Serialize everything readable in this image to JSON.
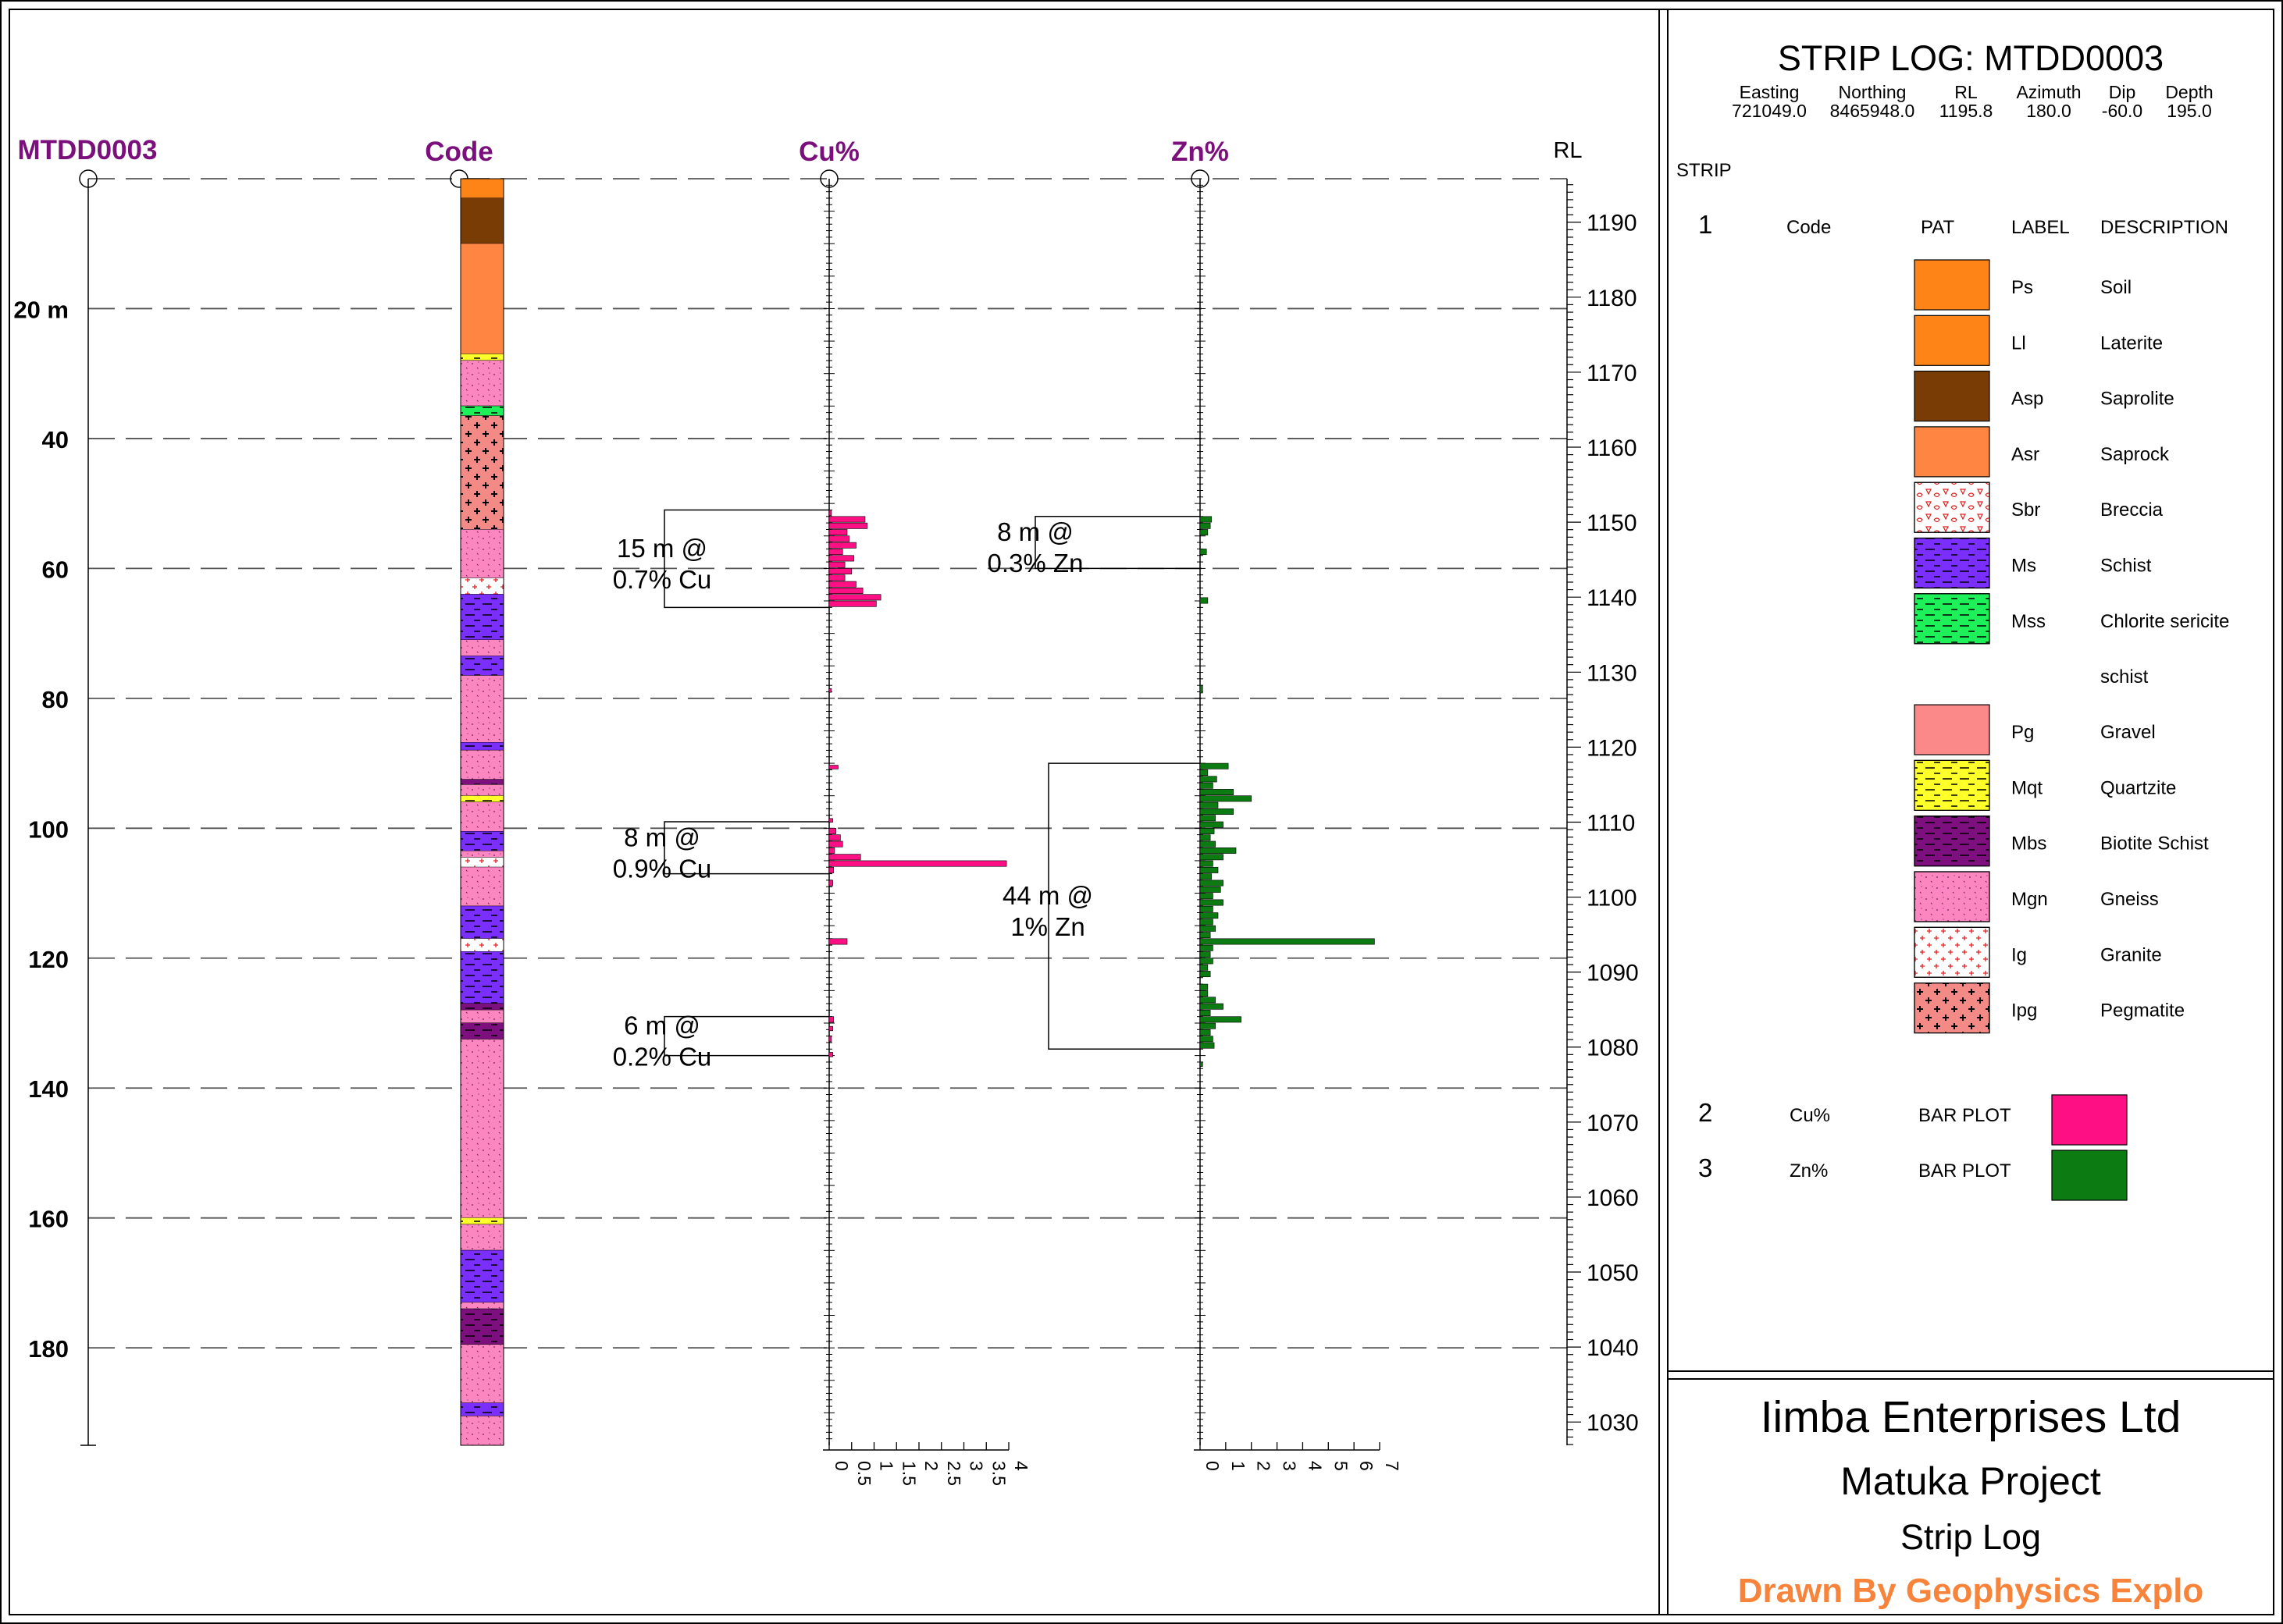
{
  "header": {
    "hole_id": "MTDD0003",
    "code_title": "Code",
    "cu_title": "Cu%",
    "zn_title": "Zn%",
    "rl_title": "RL",
    "title_color": "#7b0f7b"
  },
  "strip_title": "STRIP LOG: MTDD0003",
  "collar": [
    {
      "label": "Easting",
      "value": "721049.0"
    },
    {
      "label": "Northing",
      "value": "8465948.0"
    },
    {
      "label": "RL",
      "value": "1195.8"
    },
    {
      "label": "Azimuth",
      "value": "180.0"
    },
    {
      "label": "Dip",
      "value": "-60.0"
    },
    {
      "label": "Depth",
      "value": "195.0"
    }
  ],
  "legend": {
    "strip_label": "STRIP",
    "strip_no": "1",
    "code_col": "Code",
    "pat_col": "PAT",
    "label_col": "LABEL",
    "desc_col": "DESCRIPTION",
    "items": [
      {
        "label": "Ps",
        "description": "Soil",
        "color": "#ff8418",
        "pattern": "solid"
      },
      {
        "label": "Ll",
        "description": "Laterite",
        "color": "#ff8418",
        "pattern": "solid"
      },
      {
        "label": "Asp",
        "description": "Saprolite",
        "color": "#7a3c05",
        "pattern": "solid"
      },
      {
        "label": "Asr",
        "description": "Saprock",
        "color": "#fe8642",
        "pattern": "solid"
      },
      {
        "label": "Sbr",
        "description": "Breccia",
        "color": "#ffffff",
        "pattern": "breccia"
      },
      {
        "label": "Ms",
        "description": "Schist",
        "color": "#7b2fff",
        "pattern": "dash"
      },
      {
        "label": "Mss",
        "description": "Chlorite sericite",
        "description2": "schist",
        "color": "#1ef05a",
        "pattern": "dash"
      },
      {
        "label": "Pg",
        "description": "Gravel",
        "color": "#fb8989",
        "pattern": "solid"
      },
      {
        "label": "Mqt",
        "description": "Quartzite",
        "color": "#ffff2a",
        "pattern": "dash"
      },
      {
        "label": "Mbs",
        "description": "Biotite Schist",
        "color": "#7d0f7f",
        "pattern": "dash"
      },
      {
        "label": "Mgn",
        "description": "Gneiss",
        "color": "#fb86c0",
        "pattern": "dots"
      },
      {
        "label": "Ig",
        "description": "Granite",
        "color": "#ffffff",
        "pattern": "plus-red"
      },
      {
        "label": "Ipg",
        "description": "Pegmatite",
        "color": "#f48a86",
        "pattern": "plus-black"
      }
    ],
    "bar_plots": [
      {
        "no": "2",
        "code": "Cu%",
        "type": "BAR PLOT",
        "color": "#ff0f84"
      },
      {
        "no": "3",
        "code": "Zn%",
        "type": "BAR PLOT",
        "color": "#0b7b12"
      }
    ]
  },
  "footer": {
    "company": "Iimba Enterprises Ltd",
    "project": "Matuka Project",
    "doc_type": "Strip Log",
    "credit": "Drawn By Geophysics Explo",
    "credit_color": "#f7843a"
  },
  "chart_data": {
    "type": "bar",
    "depth_unit_label": "20 m",
    "depth_ticks": [
      20,
      40,
      60,
      80,
      100,
      120,
      140,
      160,
      180
    ],
    "depth_range": [
      0,
      195
    ],
    "rl_range": [
      1195.8,
      1026.9
    ],
    "rl_ticks": [
      1190,
      1180,
      1170,
      1160,
      1150,
      1140,
      1130,
      1120,
      1110,
      1100,
      1090,
      1080,
      1070,
      1060,
      1050,
      1040,
      1030
    ],
    "grid": true,
    "lithology": [
      {
        "from": 0,
        "to": 3,
        "code": "Ps"
      },
      {
        "from": 3,
        "to": 10,
        "code": "Asp"
      },
      {
        "from": 10,
        "to": 27,
        "code": "Asr"
      },
      {
        "from": 27,
        "to": 28,
        "code": "Mqt"
      },
      {
        "from": 28,
        "to": 35,
        "code": "Mgn"
      },
      {
        "from": 35,
        "to": 36.5,
        "code": "Mss"
      },
      {
        "from": 36.5,
        "to": 54,
        "code": "Ipg"
      },
      {
        "from": 54,
        "to": 61.5,
        "code": "Mgn"
      },
      {
        "from": 61.5,
        "to": 64,
        "code": "Ig"
      },
      {
        "from": 64,
        "to": 71,
        "code": "Ms"
      },
      {
        "from": 71,
        "to": 73.5,
        "code": "Mgn"
      },
      {
        "from": 73.5,
        "to": 76.5,
        "code": "Ms"
      },
      {
        "from": 76.5,
        "to": 86.8,
        "code": "Mgn"
      },
      {
        "from": 86.8,
        "to": 88,
        "code": "Ms"
      },
      {
        "from": 88,
        "to": 92.5,
        "code": "Mgn"
      },
      {
        "from": 92.5,
        "to": 93.3,
        "code": "Mbs"
      },
      {
        "from": 93.3,
        "to": 95,
        "code": "Mgn"
      },
      {
        "from": 95,
        "to": 96,
        "code": "Mqt"
      },
      {
        "from": 96,
        "to": 100.5,
        "code": "Mgn"
      },
      {
        "from": 100.5,
        "to": 103.5,
        "code": "Ms"
      },
      {
        "from": 103.5,
        "to": 104.5,
        "code": "Mgn"
      },
      {
        "from": 104.5,
        "to": 106,
        "code": "Ig"
      },
      {
        "from": 106,
        "to": 112,
        "code": "Mgn"
      },
      {
        "from": 112,
        "to": 117,
        "code": "Ms"
      },
      {
        "from": 117,
        "to": 119,
        "code": "Ig"
      },
      {
        "from": 119,
        "to": 127,
        "code": "Ms"
      },
      {
        "from": 127,
        "to": 128,
        "code": "Mbs"
      },
      {
        "from": 128,
        "to": 130,
        "code": "Mgn"
      },
      {
        "from": 130,
        "to": 132.5,
        "code": "Mbs"
      },
      {
        "from": 132.5,
        "to": 160,
        "code": "Mgn"
      },
      {
        "from": 160,
        "to": 161,
        "code": "Mqt"
      },
      {
        "from": 161,
        "to": 165,
        "code": "Mgn"
      },
      {
        "from": 165,
        "to": 173,
        "code": "Ms"
      },
      {
        "from": 173,
        "to": 174,
        "code": "Mgn"
      },
      {
        "from": 174,
        "to": 179.5,
        "code": "Mbs"
      },
      {
        "from": 179.5,
        "to": 188.5,
        "code": "Mgn"
      },
      {
        "from": 188.5,
        "to": 190.5,
        "code": "Ms"
      },
      {
        "from": 190.5,
        "to": 195,
        "code": "Mgn"
      }
    ],
    "series": [
      {
        "name": "Cu%",
        "color": "#ff0f84",
        "axis_ticks": [
          "0",
          "0.5",
          "1",
          "1.5",
          "2",
          "2.5",
          "3",
          "3.5",
          "4"
        ],
        "axis_max": 4,
        "bars": [
          {
            "from": 51,
            "to": 52,
            "value": 0.05
          },
          {
            "from": 52,
            "to": 53,
            "value": 0.8
          },
          {
            "from": 53,
            "to": 54,
            "value": 0.85
          },
          {
            "from": 54,
            "to": 55,
            "value": 0.4
          },
          {
            "from": 55,
            "to": 56,
            "value": 0.45
          },
          {
            "from": 56,
            "to": 57,
            "value": 0.6
          },
          {
            "from": 57,
            "to": 58,
            "value": 0.3
          },
          {
            "from": 58,
            "to": 59,
            "value": 0.55
          },
          {
            "from": 59,
            "to": 60,
            "value": 0.35
          },
          {
            "from": 60,
            "to": 61,
            "value": 0.5
          },
          {
            "from": 61,
            "to": 62,
            "value": 0.35
          },
          {
            "from": 62,
            "to": 63,
            "value": 0.6
          },
          {
            "from": 63,
            "to": 64,
            "value": 0.75
          },
          {
            "from": 64,
            "to": 65,
            "value": 1.15
          },
          {
            "from": 65,
            "to": 66,
            "value": 1.05
          },
          {
            "from": 78.5,
            "to": 79.2,
            "value": 0.05
          },
          {
            "from": 90.3,
            "to": 91,
            "value": 0.2
          },
          {
            "from": 98.5,
            "to": 99.2,
            "value": 0.08
          },
          {
            "from": 100,
            "to": 101,
            "value": 0.15
          },
          {
            "from": 101,
            "to": 102,
            "value": 0.25
          },
          {
            "from": 102,
            "to": 103,
            "value": 0.3
          },
          {
            "from": 103,
            "to": 104,
            "value": 0.12
          },
          {
            "from": 104,
            "to": 105,
            "value": 0.7
          },
          {
            "from": 105,
            "to": 106,
            "value": 3.95
          },
          {
            "from": 106,
            "to": 107,
            "value": 0.1
          },
          {
            "from": 108,
            "to": 109,
            "value": 0.08
          },
          {
            "from": 117,
            "to": 118,
            "value": 0.4
          },
          {
            "from": 129,
            "to": 130,
            "value": 0.1
          },
          {
            "from": 130.5,
            "to": 131.3,
            "value": 0.08
          },
          {
            "from": 132,
            "to": 133,
            "value": 0.05
          },
          {
            "from": 134.5,
            "to": 135.3,
            "value": 0.08
          }
        ],
        "intercepts": [
          {
            "from": 51,
            "to": 66,
            "line1": "15 m @",
            "line2": "0.7% Cu"
          },
          {
            "from": 99,
            "to": 107,
            "line1": "8 m @",
            "line2": "0.9% Cu"
          },
          {
            "from": 129,
            "to": 135,
            "line1": "6 m @",
            "line2": "0.2% Cu"
          }
        ]
      },
      {
        "name": "Zn%",
        "color": "#0b7b12",
        "axis_ticks": [
          "0",
          "1",
          "2",
          "3",
          "4",
          "5",
          "6",
          "7"
        ],
        "axis_max": 7,
        "bars": [
          {
            "from": 52,
            "to": 53,
            "value": 0.45
          },
          {
            "from": 53,
            "to": 54,
            "value": 0.4
          },
          {
            "from": 54,
            "to": 55,
            "value": 0.3
          },
          {
            "from": 57,
            "to": 58,
            "value": 0.25
          },
          {
            "from": 64.5,
            "to": 65.5,
            "value": 0.3
          },
          {
            "from": 78,
            "to": 79.3,
            "value": 0.1
          },
          {
            "from": 90,
            "to": 91,
            "value": 1.1
          },
          {
            "from": 91,
            "to": 92,
            "value": 0.3
          },
          {
            "from": 92,
            "to": 93,
            "value": 0.65
          },
          {
            "from": 93,
            "to": 94,
            "value": 0.5
          },
          {
            "from": 94,
            "to": 95,
            "value": 1.3
          },
          {
            "from": 95,
            "to": 96,
            "value": 2.0
          },
          {
            "from": 96,
            "to": 97,
            "value": 0.7
          },
          {
            "from": 97,
            "to": 98,
            "value": 1.3
          },
          {
            "from": 98,
            "to": 99,
            "value": 0.6
          },
          {
            "from": 99,
            "to": 100,
            "value": 0.9
          },
          {
            "from": 100,
            "to": 101,
            "value": 0.55
          },
          {
            "from": 101,
            "to": 102,
            "value": 0.4
          },
          {
            "from": 102,
            "to": 103,
            "value": 0.6
          },
          {
            "from": 103,
            "to": 104,
            "value": 1.4
          },
          {
            "from": 104,
            "to": 105,
            "value": 0.9
          },
          {
            "from": 105,
            "to": 106,
            "value": 0.5
          },
          {
            "from": 106,
            "to": 107,
            "value": 0.7
          },
          {
            "from": 107,
            "to": 108,
            "value": 0.45
          },
          {
            "from": 108,
            "to": 109,
            "value": 0.9
          },
          {
            "from": 109,
            "to": 110,
            "value": 0.8
          },
          {
            "from": 110,
            "to": 111,
            "value": 0.5
          },
          {
            "from": 111,
            "to": 112,
            "value": 0.9
          },
          {
            "from": 112,
            "to": 113,
            "value": 0.5
          },
          {
            "from": 113,
            "to": 114,
            "value": 0.7
          },
          {
            "from": 114,
            "to": 115,
            "value": 0.5
          },
          {
            "from": 115,
            "to": 116,
            "value": 0.6
          },
          {
            "from": 116,
            "to": 117,
            "value": 0.4
          },
          {
            "from": 117,
            "to": 118,
            "value": 6.8
          },
          {
            "from": 118,
            "to": 119,
            "value": 0.5
          },
          {
            "from": 119,
            "to": 120,
            "value": 0.4
          },
          {
            "from": 120,
            "to": 121,
            "value": 0.5
          },
          {
            "from": 121,
            "to": 122,
            "value": 0.3
          },
          {
            "from": 122,
            "to": 123,
            "value": 0.4
          },
          {
            "from": 124,
            "to": 125,
            "value": 0.3
          },
          {
            "from": 125,
            "to": 126,
            "value": 0.3
          },
          {
            "from": 126,
            "to": 127,
            "value": 0.6
          },
          {
            "from": 127,
            "to": 128,
            "value": 0.9
          },
          {
            "from": 128,
            "to": 129,
            "value": 0.4
          },
          {
            "from": 129,
            "to": 130,
            "value": 1.6
          },
          {
            "from": 130,
            "to": 131,
            "value": 0.6
          },
          {
            "from": 131,
            "to": 132,
            "value": 0.4
          },
          {
            "from": 132,
            "to": 133,
            "value": 0.5
          },
          {
            "from": 133,
            "to": 134,
            "value": 0.55
          },
          {
            "from": 136,
            "to": 136.8,
            "value": 0.1
          }
        ],
        "intercepts": [
          {
            "from": 52,
            "to": 60,
            "line1": "8 m @",
            "line2": "0.3% Zn"
          },
          {
            "from": 90,
            "to": 134,
            "line1": "44 m @",
            "line2": "1% Zn"
          }
        ]
      }
    ]
  }
}
